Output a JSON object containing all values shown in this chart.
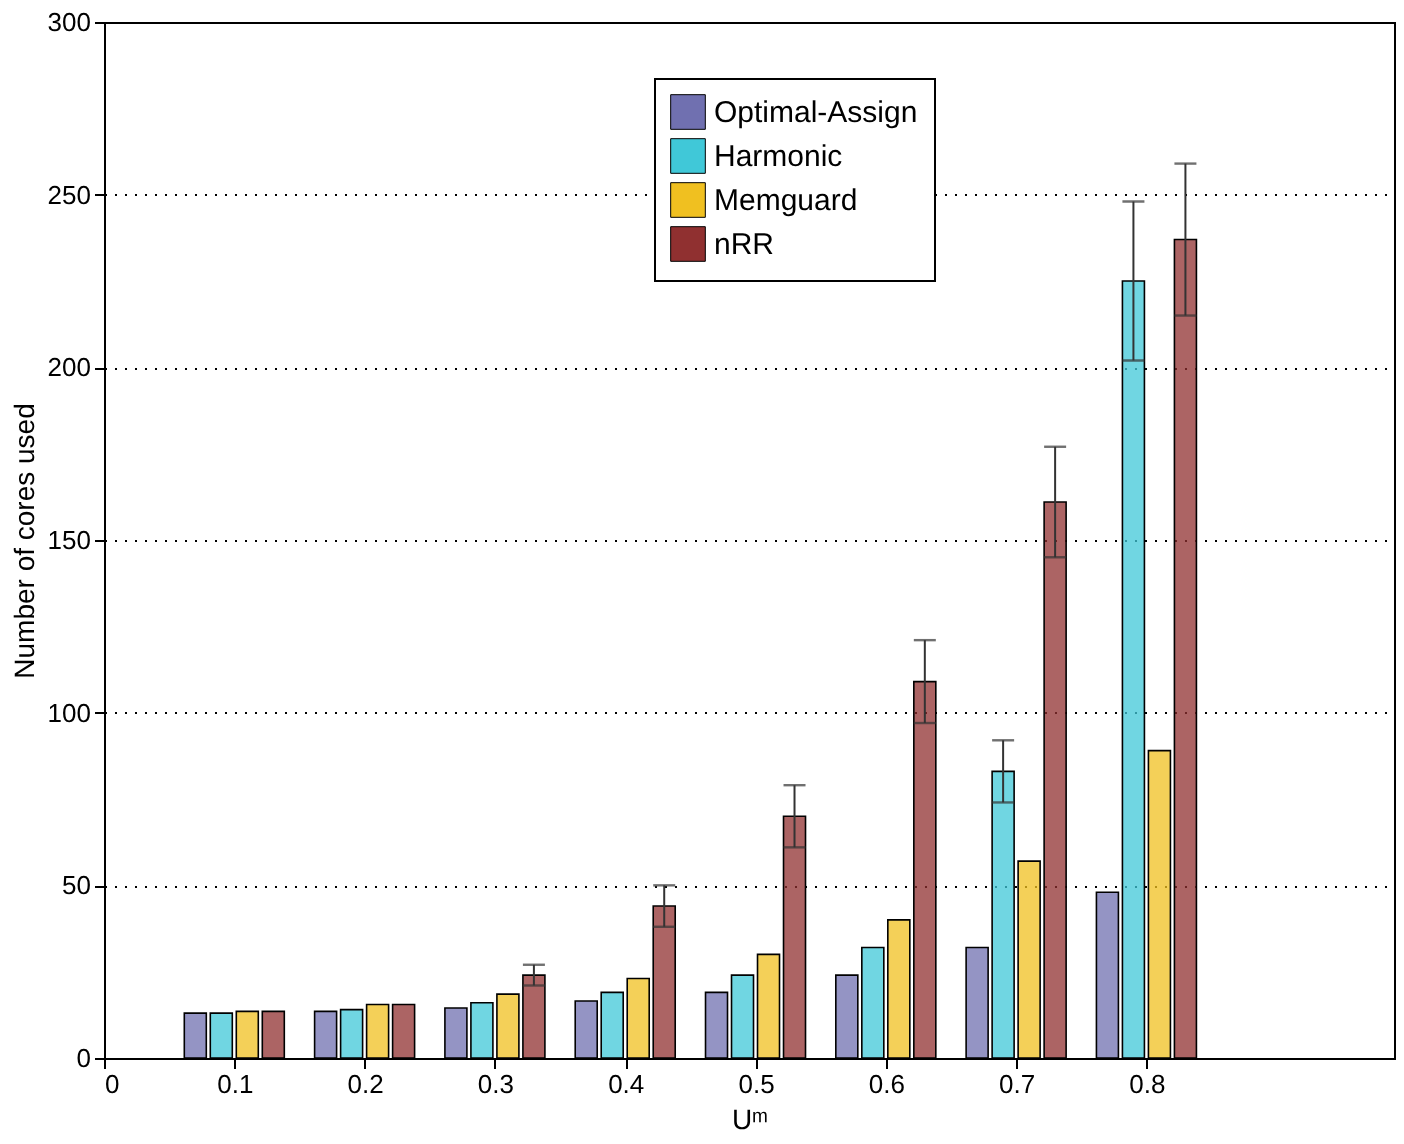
{
  "chart_data": {
    "type": "bar",
    "xlabel": "Uᵐ",
    "ylabel": "Number of cores used",
    "x": [
      0.1,
      0.2,
      0.3,
      0.4,
      0.5,
      0.6,
      0.7,
      0.8
    ],
    "xlim": [
      0,
      0.99
    ],
    "xticks": [
      0,
      0.1,
      0.2,
      0.3,
      0.4,
      0.5,
      0.6,
      0.7,
      0.8
    ],
    "ylim": [
      0,
      300
    ],
    "yticks": [
      0,
      50,
      100,
      150,
      200,
      250,
      300
    ],
    "grid": "y",
    "legend": "top right",
    "series": [
      {
        "name": "Optimal-Assign",
        "color": "#7070b0",
        "values": [
          13,
          13.5,
          14.5,
          16.5,
          19,
          24,
          32,
          48
        ]
      },
      {
        "name": "Harmonic",
        "color": "#40c8d8",
        "values": [
          13,
          14,
          16,
          19,
          24,
          32,
          83,
          225
        ],
        "errors": [
          null,
          null,
          null,
          null,
          null,
          null,
          9,
          23
        ]
      },
      {
        "name": "Memguard",
        "color": "#f0c020",
        "values": [
          13.5,
          15.5,
          18.5,
          23,
          30,
          40,
          57,
          89
        ]
      },
      {
        "name": "nRR",
        "color": "#903030",
        "values": [
          13.5,
          15.5,
          24,
          44,
          70,
          109,
          161,
          237
        ],
        "errors": [
          null,
          null,
          3,
          6,
          9,
          12,
          16,
          22
        ]
      }
    ]
  }
}
